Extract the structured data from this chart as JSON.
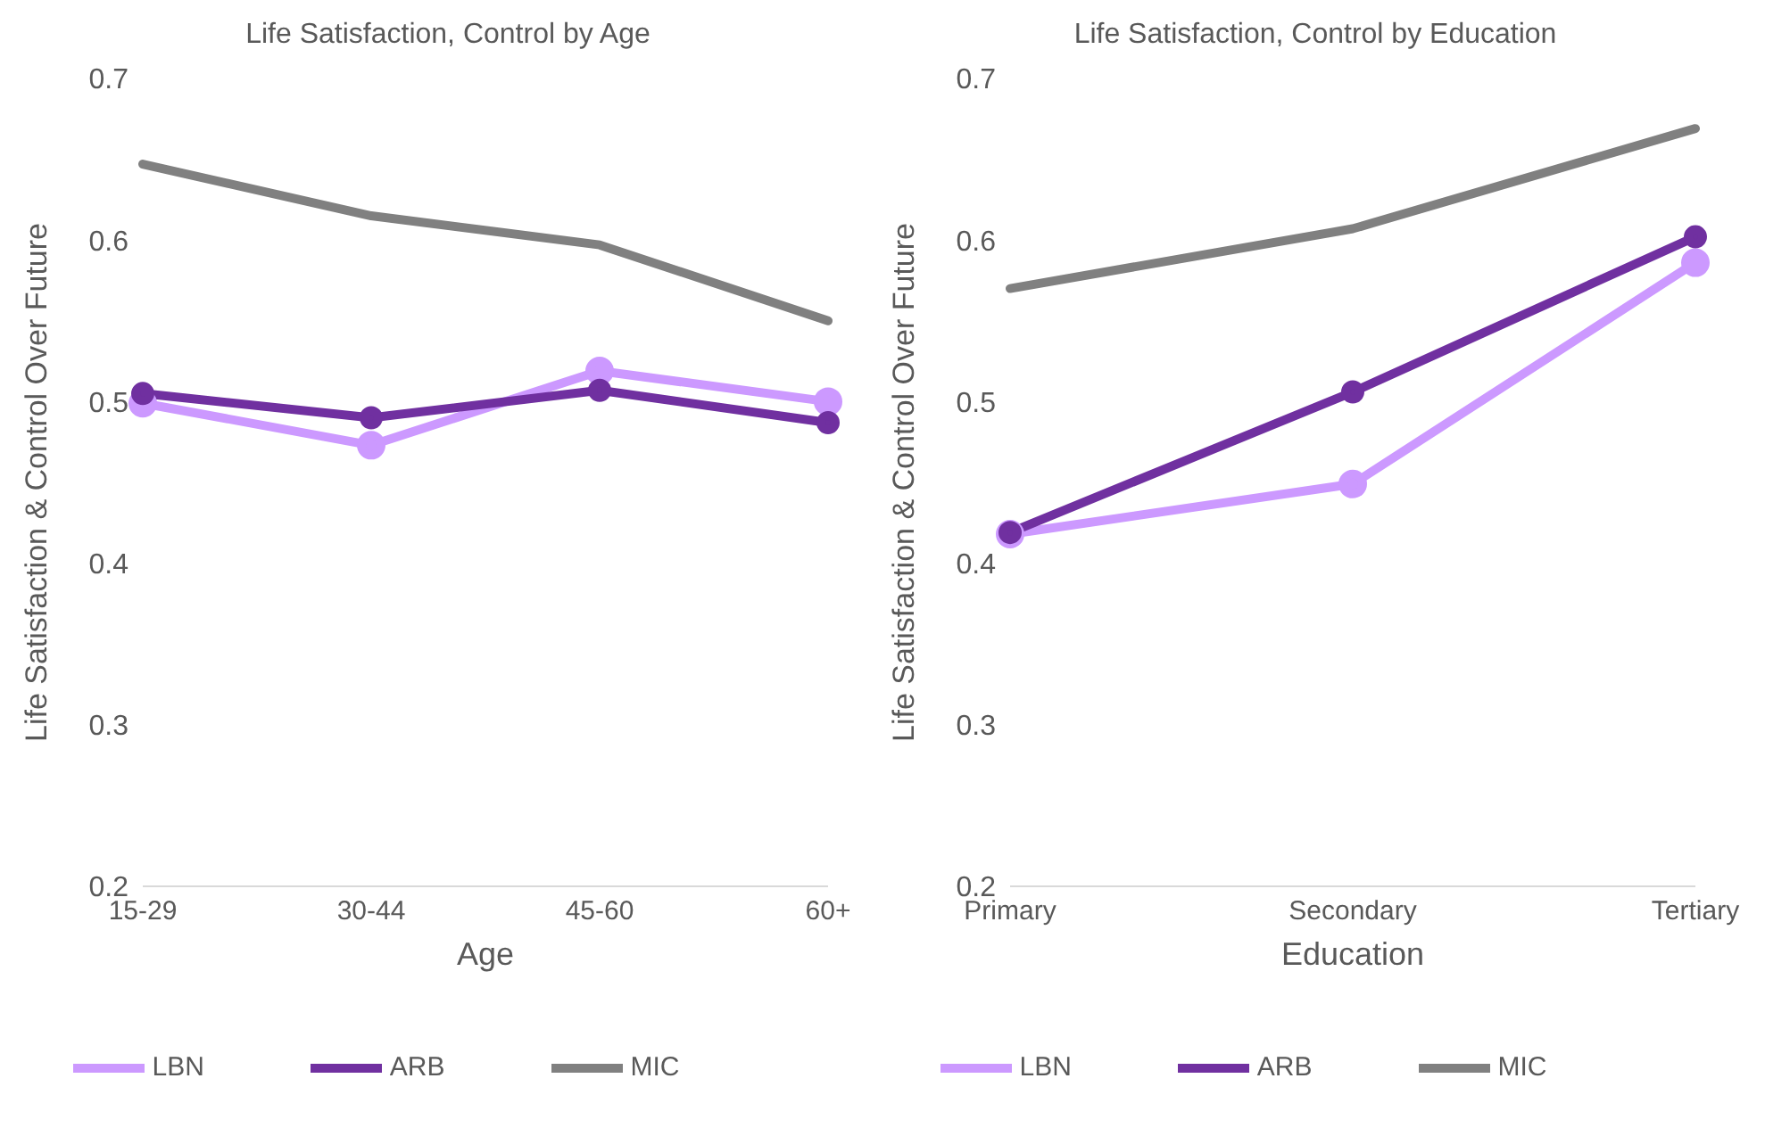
{
  "chart_data": [
    {
      "type": "line",
      "title": "Life Satisfaction, Control by Age",
      "xlabel": "Age",
      "ylabel": "Life Satisfaction & Control Over Future",
      "categories": [
        "15-29",
        "30-44",
        "45-60",
        "60+"
      ],
      "ylim": [
        0.2,
        0.7
      ],
      "yticks": [
        0.2,
        0.3,
        0.4,
        0.5,
        0.6,
        0.7
      ],
      "grid": false,
      "legend": "bottom",
      "marker": "circle",
      "series": [
        {
          "name": "LBN",
          "color": "#cc99ff",
          "values": [
            0.499,
            0.473,
            0.519,
            0.5
          ]
        },
        {
          "name": "ARB",
          "color": "#7030a0",
          "values": [
            0.505,
            0.49,
            0.507,
            0.487
          ]
        },
        {
          "name": "MIC",
          "color": "#808080",
          "values": [
            0.647,
            0.615,
            0.597,
            0.55
          ],
          "marker": "none"
        }
      ]
    },
    {
      "type": "line",
      "title": "Life Satisfaction, Control by Education",
      "xlabel": "Education",
      "ylabel": "Life Satisfaction & Control Over Future",
      "categories": [
        "Primary",
        "Secondary",
        "Tertiary"
      ],
      "ylim": [
        0.2,
        0.7
      ],
      "yticks": [
        0.2,
        0.3,
        0.4,
        0.5,
        0.6,
        0.7
      ],
      "grid": false,
      "legend": "bottom",
      "marker": "circle",
      "series": [
        {
          "name": "LBN",
          "color": "#cc99ff",
          "values": [
            0.418,
            0.449,
            0.586
          ]
        },
        {
          "name": "ARB",
          "color": "#7030a0",
          "values": [
            0.419,
            0.506,
            0.602
          ]
        },
        {
          "name": "MIC",
          "color": "#808080",
          "values": [
            0.57,
            0.607,
            0.669
          ],
          "marker": "none"
        }
      ]
    }
  ]
}
